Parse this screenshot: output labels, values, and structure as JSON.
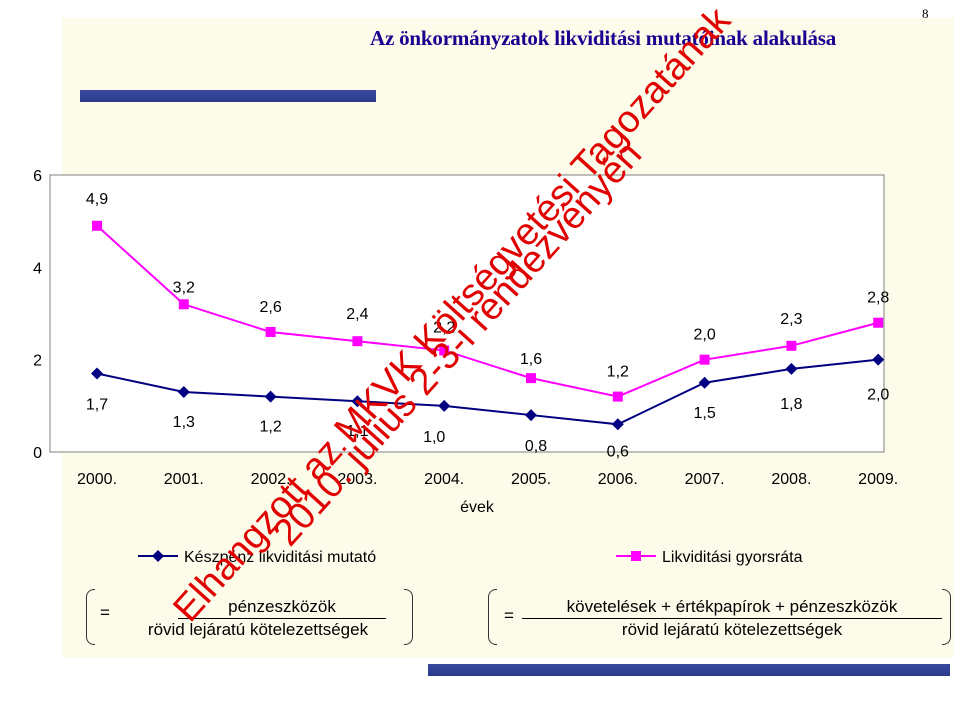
{
  "page_number": "8",
  "title": "Az önkormányzatok likviditási mutatóinak alakulása",
  "watermark": {
    "line1": "Elhangzott az MKVK Költségvetési Tagozatának",
    "line2": "2010. július 2-3-i rendezvényén"
  },
  "formulas": {
    "left": {
      "equals": "=",
      "numerator": "pénzeszközök",
      "denominator": "rövid lejáratú kötelezettségek"
    },
    "right": {
      "equals": "=",
      "numerator": "követelések + értékpapírok + pénzeszközök",
      "denominator": "rövid lejáratú kötelezettségek"
    }
  },
  "chart_data": {
    "type": "line",
    "categories": [
      "2000.",
      "2001.",
      "2002.",
      "2003.",
      "2004.",
      "2005.",
      "2006.",
      "2007.",
      "2008.",
      "2009."
    ],
    "xlabel": "évek",
    "ylabel": "",
    "ylim": [
      0,
      6
    ],
    "yticks": [
      "0",
      "2",
      "4",
      "6"
    ],
    "legend_position": "bottom",
    "series": [
      {
        "name": "Készpénz likviditási mutató",
        "color": "#000080",
        "marker": "diamond",
        "values": [
          1.7,
          1.3,
          1.2,
          1.1,
          1.0,
          0.8,
          0.6,
          1.5,
          1.8,
          2.0
        ],
        "labels": [
          "1,7",
          "1,3",
          "1,2",
          "1,1",
          "1,0",
          "0,8",
          "0,6",
          "1,5",
          "1,8",
          "2,0"
        ]
      },
      {
        "name": "Likviditási gyorsráta",
        "color": "#ff00ff",
        "marker": "square",
        "values": [
          4.9,
          3.2,
          2.6,
          2.4,
          2.2,
          1.6,
          1.2,
          2.0,
          2.3,
          2.8
        ],
        "labels": [
          "4,9",
          "3,2",
          "2,6",
          "2,4",
          "2,2",
          "1,6",
          "1,2",
          "2,0",
          "2,3",
          "2,8"
        ]
      }
    ]
  }
}
